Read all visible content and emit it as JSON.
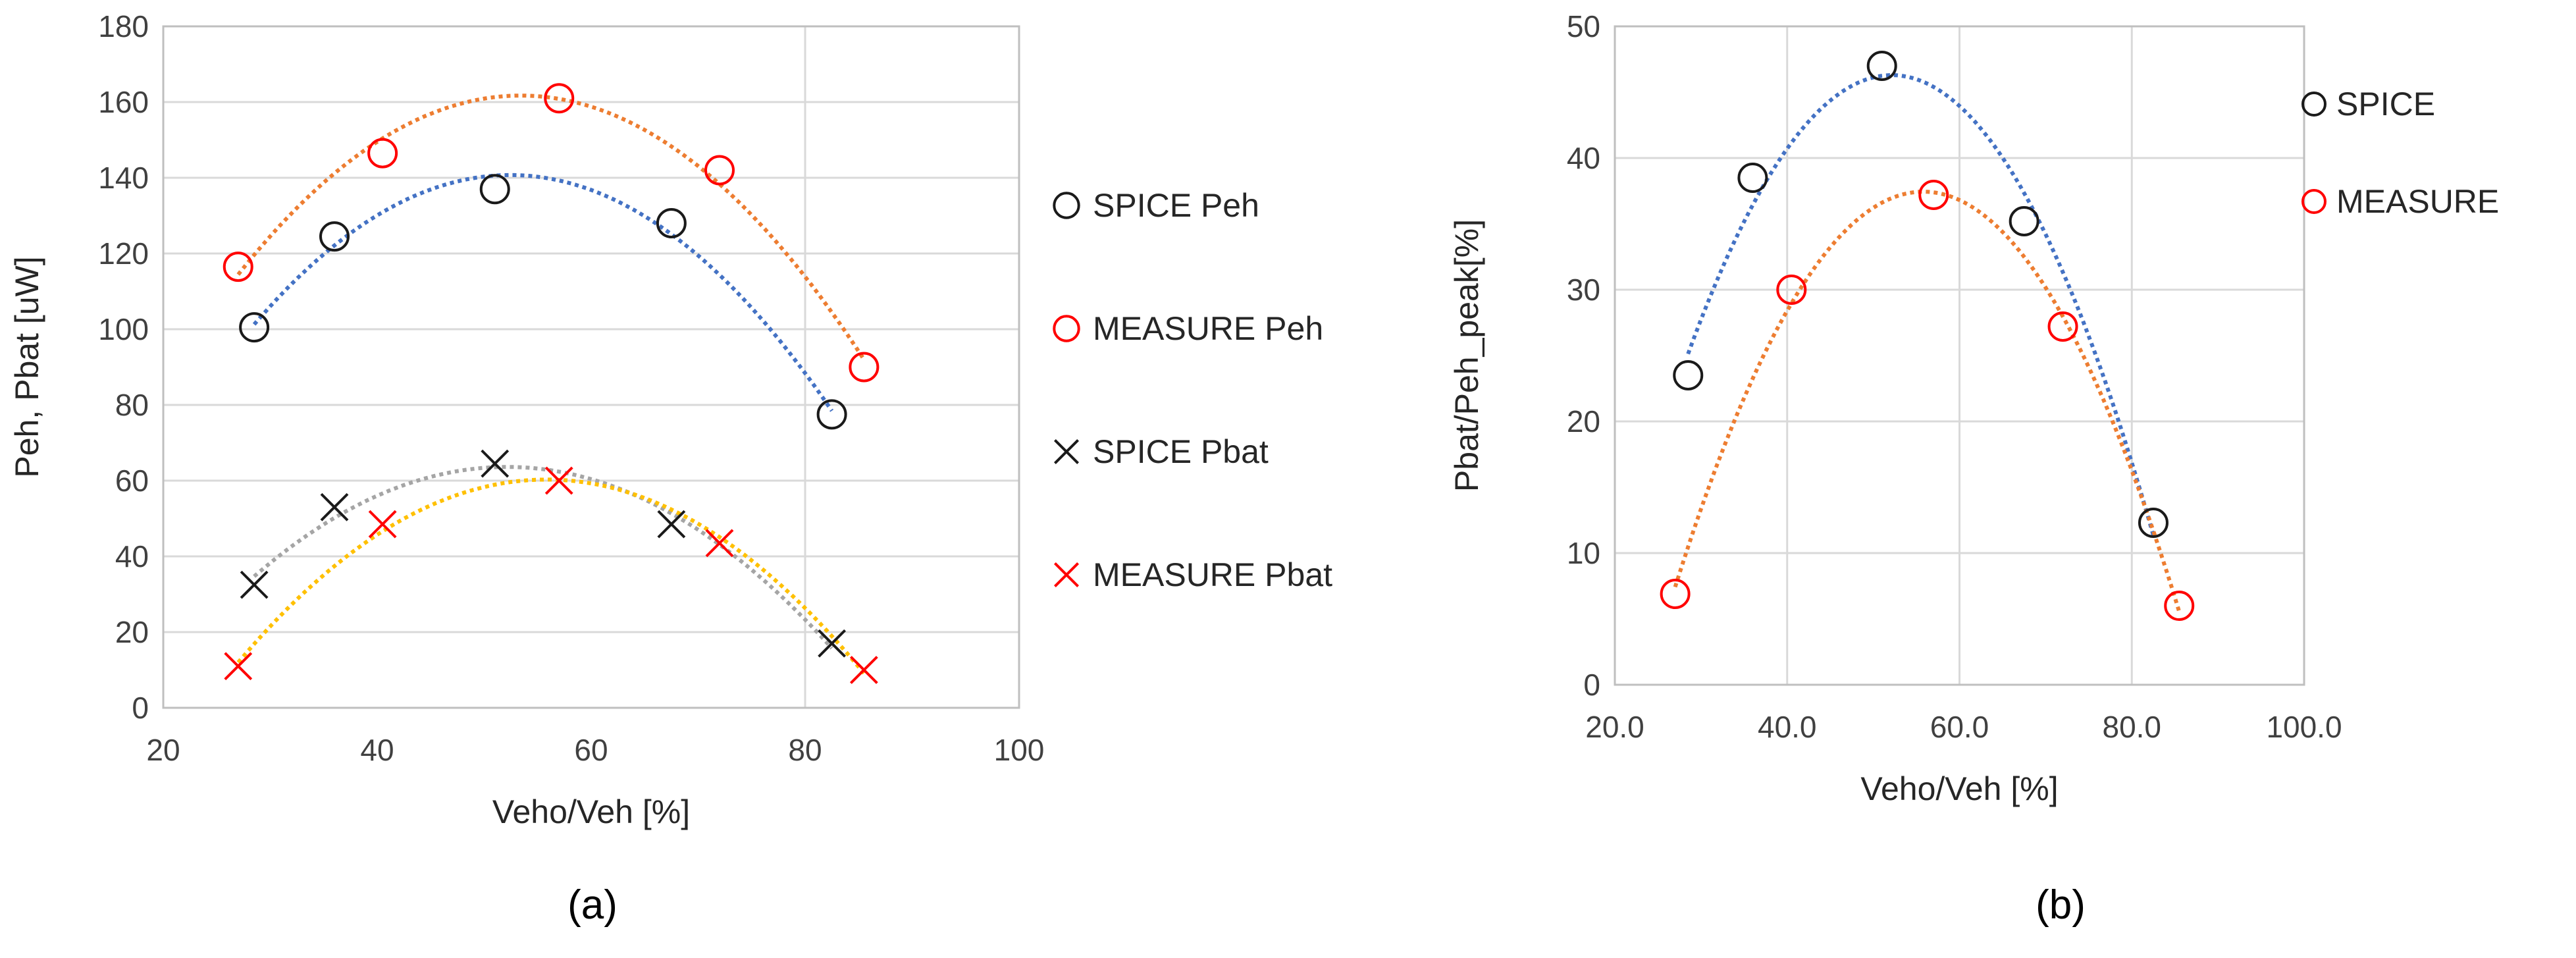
{
  "colors": {
    "spice_marker": "#1a1a1a",
    "measure_marker": "#ff0000",
    "trend_spice_peh": "#4472c4",
    "trend_measure_peh": "#ed7d31",
    "trend_spice_pbat": "#a5a5a5",
    "trend_measure_pbat": "#ffc000",
    "grid": "#d9d9d9",
    "axis": "#bfbfbf"
  },
  "chart_data": [
    {
      "type": "scatter",
      "caption": "(a)",
      "xlabel": "Veho/Veh [%]",
      "ylabel": "Peh, Pbat [uW]",
      "xlim": [
        20,
        100
      ],
      "ylim": [
        0,
        180
      ],
      "xticks": [
        "20",
        "40",
        "60",
        "80",
        "100"
      ],
      "yticks": [
        "0",
        "20",
        "40",
        "60",
        "80",
        "100",
        "120",
        "140",
        "160",
        "180"
      ],
      "legend_position": "right",
      "series": [
        {
          "name": "SPICE Peh",
          "marker": "circle",
          "color": "#1a1a1a",
          "trend_color": "#4472c4",
          "x": [
            28.5,
            36,
            51,
            67.5,
            82.5
          ],
          "y": [
            100.5,
            124.5,
            137,
            128,
            77.5
          ]
        },
        {
          "name": "MEASURE Peh",
          "marker": "circle",
          "color": "#ff0000",
          "trend_color": "#ed7d31",
          "x": [
            27,
            40.5,
            57,
            72,
            85.5
          ],
          "y": [
            116.5,
            146.5,
            161,
            142,
            90
          ]
        },
        {
          "name": "SPICE Pbat",
          "marker": "x",
          "color": "#1a1a1a",
          "trend_color": "#a5a5a5",
          "x": [
            28.5,
            36,
            51,
            67.5,
            82.5
          ],
          "y": [
            32.5,
            53,
            64.5,
            48.5,
            17
          ]
        },
        {
          "name": "MEASURE Pbat",
          "marker": "x",
          "color": "#ff0000",
          "trend_color": "#ffc000",
          "x": [
            27,
            40.5,
            57,
            72,
            85.5
          ],
          "y": [
            11,
            48.5,
            60,
            43.5,
            10
          ]
        }
      ]
    },
    {
      "type": "scatter",
      "caption": "(b)",
      "xlabel": "Veho/Veh [%]",
      "ylabel": "Pbat/Peh_peak[%]",
      "xlim": [
        20,
        100
      ],
      "ylim": [
        0,
        50
      ],
      "xticks": [
        "20.0",
        "40.0",
        "60.0",
        "80.0",
        "100.0"
      ],
      "yticks": [
        "0",
        "10",
        "20",
        "30",
        "40",
        "50"
      ],
      "legend_position": "top-right",
      "series": [
        {
          "name": "SPICE",
          "marker": "circle",
          "color": "#1a1a1a",
          "trend_color": "#4472c4",
          "x": [
            28.5,
            36,
            51,
            67.5,
            82.5
          ],
          "y": [
            23.5,
            38.5,
            47,
            35.2,
            12.3
          ]
        },
        {
          "name": "MEASURE",
          "marker": "circle",
          "color": "#ff0000",
          "trend_color": "#ed7d31",
          "x": [
            27,
            40.5,
            57,
            72,
            85.5
          ],
          "y": [
            6.9,
            30,
            37.2,
            27.2,
            6
          ]
        }
      ]
    }
  ]
}
